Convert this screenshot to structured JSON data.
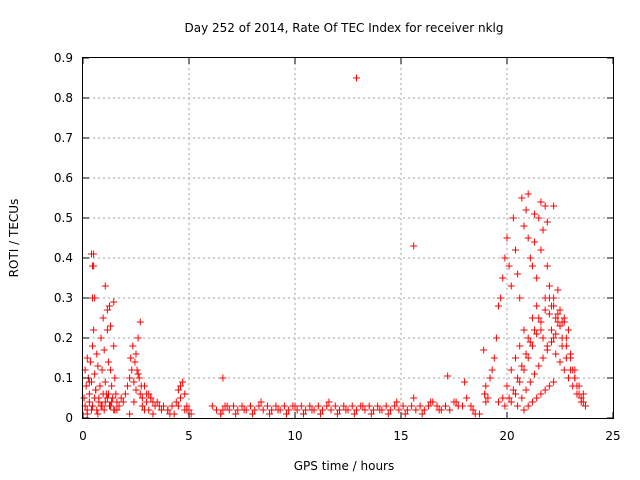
{
  "chart_data": {
    "type": "scatter",
    "title": "Day 252 of 2014, Rate Of TEC Index for receiver nklg",
    "xlabel": "GPS time / hours",
    "ylabel": "ROTI / TECUs",
    "xlim": [
      0,
      25
    ],
    "ylim": [
      0,
      0.9
    ],
    "xticks": [
      0,
      5,
      10,
      15,
      20,
      25
    ],
    "yticks": [
      0,
      0.1,
      0.2,
      0.3,
      0.4,
      0.5,
      0.6,
      0.7,
      0.8,
      0.9
    ],
    "grid": true,
    "legend": "none",
    "marker": "+",
    "color": "#ff0000",
    "series": [
      {
        "x": [
          0.05,
          0.1,
          0.15,
          0.2,
          0.25,
          0.3,
          0.35,
          0.4,
          0.45,
          0.5,
          0.55,
          0.6,
          0.65,
          0.7,
          0.75,
          0.8,
          0.85,
          0.9,
          0.95,
          1.0,
          1.05,
          1.1,
          1.15,
          1.2,
          1.25,
          1.3,
          1.35,
          1.4,
          1.45,
          1.5,
          1.55,
          1.6,
          1.7,
          1.8,
          1.9,
          2.0,
          2.1,
          2.2,
          2.3,
          2.4,
          2.5,
          2.6,
          2.7,
          2.8,
          2.9,
          3.0,
          3.1,
          3.2,
          3.3,
          3.4,
          3.5,
          3.6,
          3.8,
          4.0,
          4.2,
          4.4,
          4.6,
          4.8,
          4.9,
          5.0,
          5.1,
          0.1,
          0.2,
          0.3,
          0.45,
          0.55,
          0.65,
          0.75,
          0.85,
          0.95,
          1.05,
          1.15,
          1.25,
          1.35,
          1.45,
          2.25,
          2.35,
          2.45,
          2.55,
          2.65,
          2.75,
          3.0,
          3.2,
          4.5,
          4.6,
          4.7,
          0.45,
          0.5,
          0.55,
          1.05,
          1.15,
          1.3,
          1.45,
          2.5,
          2.6,
          2.7,
          0.3,
          0.6,
          0.9,
          1.2,
          1.5,
          2.4,
          2.8,
          3.1,
          4.0,
          4.3,
          4.8,
          0.2,
          0.4,
          0.7,
          1.0,
          1.3,
          1.6,
          2.2,
          2.9,
          3.3,
          3.7,
          4.1,
          4.5,
          4.9,
          6.1,
          6.3,
          6.5,
          6.6,
          6.7,
          6.9,
          7.1,
          7.3,
          7.5,
          7.7,
          7.9,
          8.1,
          8.3,
          8.5,
          8.7,
          8.9,
          9.1,
          9.3,
          9.5,
          9.7,
          9.9,
          10.1,
          10.3,
          10.5,
          10.7,
          10.9,
          11.1,
          11.3,
          11.5,
          11.7,
          11.9,
          12.1,
          12.3,
          12.5,
          12.7,
          12.9,
          13.1,
          13.3,
          13.5,
          13.7,
          13.9,
          14.1,
          14.3,
          14.5,
          14.7,
          14.9,
          15.1,
          15.3,
          15.5,
          15.7,
          15.9,
          16.1,
          16.3,
          16.5,
          16.7,
          16.9,
          17.1,
          17.3,
          17.5,
          17.7,
          17.9,
          18.1,
          18.3,
          18.5,
          18.7,
          6.5,
          7.2,
          8.0,
          8.8,
          9.6,
          10.4,
          11.2,
          12.0,
          12.8,
          13.6,
          14.4,
          15.2,
          16.0,
          16.8,
          17.6,
          18.4,
          6.8,
          7.6,
          8.4,
          9.2,
          10.0,
          10.8,
          11.6,
          12.4,
          13.2,
          14.0,
          14.8,
          15.6,
          16.4,
          17.2,
          18.0,
          6.6,
          12.9,
          15.6,
          18.9,
          18.95,
          19.0,
          19.1,
          19.2,
          19.3,
          19.4,
          19.5,
          19.6,
          19.7,
          19.8,
          19.9,
          20.0,
          20.1,
          20.2,
          20.3,
          20.4,
          20.5,
          20.6,
          20.7,
          20.8,
          20.9,
          21.0,
          21.1,
          21.2,
          21.3,
          21.4,
          21.5,
          21.6,
          21.7,
          21.8,
          21.9,
          22.0,
          22.1,
          22.2,
          22.3,
          22.4,
          22.5,
          22.6,
          22.7,
          22.8,
          22.9,
          23.0,
          23.1,
          23.2,
          23.3,
          23.4,
          23.5,
          23.6,
          23.7,
          19.6,
          19.8,
          20.0,
          20.2,
          20.4,
          20.6,
          20.8,
          21.0,
          21.2,
          21.4,
          21.6,
          21.8,
          22.0,
          22.2,
          22.4,
          22.6,
          22.8,
          23.0,
          23.2,
          23.4,
          23.6,
          19.9,
          20.1,
          20.3,
          20.5,
          20.7,
          20.9,
          21.1,
          21.3,
          21.5,
          21.7,
          21.9,
          22.1,
          22.3,
          22.5,
          22.7,
          22.9,
          23.1,
          23.3,
          23.5,
          20.2,
          20.4,
          20.6,
          20.8,
          21.0,
          21.2,
          21.4,
          21.6,
          21.8,
          22.0,
          22.2,
          22.4,
          22.6,
          22.8,
          23.0,
          23.2,
          20.5,
          20.7,
          20.9,
          21.1,
          21.3,
          21.5,
          21.7,
          21.9,
          22.1,
          22.3,
          22.5,
          22.7,
          20.8,
          21.0,
          21.2,
          21.4,
          21.6,
          21.8,
          22.0,
          22.2,
          21.0,
          21.3,
          21.6,
          21.9,
          22.2,
          18.95,
          19.0,
          0.4,
          0.5,
          0.45
        ],
        "y": [
          0.05,
          0.12,
          0.08,
          0.15,
          0.1,
          0.06,
          0.14,
          0.09,
          0.18,
          0.22,
          0.11,
          0.07,
          0.16,
          0.13,
          0.05,
          0.08,
          0.2,
          0.12,
          0.25,
          0.17,
          0.09,
          0.06,
          0.22,
          0.14,
          0.28,
          0.12,
          0.08,
          0.05,
          0.18,
          0.1,
          0.06,
          0.04,
          0.03,
          0.05,
          0.04,
          0.06,
          0.08,
          0.1,
          0.12,
          0.09,
          0.07,
          0.11,
          0.06,
          0.05,
          0.08,
          0.04,
          0.06,
          0.05,
          0.04,
          0.03,
          0.04,
          0.03,
          0.03,
          0.02,
          0.03,
          0.04,
          0.05,
          0.06,
          0.03,
          0.02,
          0.01,
          0.03,
          0.02,
          0.04,
          0.03,
          0.05,
          0.02,
          0.04,
          0.03,
          0.06,
          0.04,
          0.05,
          0.03,
          0.04,
          0.02,
          0.15,
          0.18,
          0.14,
          0.12,
          0.1,
          0.08,
          0.06,
          0.05,
          0.07,
          0.08,
          0.09,
          0.38,
          0.41,
          0.3,
          0.33,
          0.27,
          0.23,
          0.29,
          0.16,
          0.2,
          0.24,
          0.09,
          0.07,
          0.03,
          0.06,
          0.02,
          0.04,
          0.03,
          0.02,
          0.02,
          0.01,
          0.02,
          0.01,
          0.02,
          0.01,
          0.02,
          0.03,
          0.02,
          0.01,
          0.02,
          0.01,
          0.02,
          0.01,
          0.03,
          0.02,
          0.03,
          0.02,
          0.01,
          0.02,
          0.03,
          0.02,
          0.03,
          0.02,
          0.03,
          0.02,
          0.03,
          0.02,
          0.03,
          0.02,
          0.03,
          0.02,
          0.03,
          0.02,
          0.03,
          0.02,
          0.03,
          0.02,
          0.03,
          0.02,
          0.03,
          0.02,
          0.03,
          0.02,
          0.03,
          0.02,
          0.03,
          0.02,
          0.03,
          0.02,
          0.03,
          0.02,
          0.03,
          0.02,
          0.03,
          0.02,
          0.03,
          0.02,
          0.03,
          0.02,
          0.03,
          0.02,
          0.03,
          0.02,
          0.03,
          0.02,
          0.03,
          0.02,
          0.03,
          0.04,
          0.03,
          0.02,
          0.03,
          0.02,
          0.04,
          0.03,
          0.03,
          0.05,
          0.03,
          0.01,
          0.01,
          0.01,
          0.01,
          0.01,
          0.01,
          0.01,
          0.01,
          0.01,
          0.01,
          0.01,
          0.01,
          0.01,
          0.01,
          0.01,
          0.02,
          0.04,
          0.02,
          0.03,
          0.02,
          0.04,
          0.02,
          0.03,
          0.02,
          0.04,
          0.02,
          0.03,
          0.02,
          0.04,
          0.05,
          0.04,
          0.105,
          0.09,
          0.1,
          0.85,
          0.43,
          0.17,
          0.06,
          0.08,
          0.05,
          0.1,
          0.12,
          0.15,
          0.2,
          0.28,
          0.3,
          0.35,
          0.4,
          0.45,
          0.38,
          0.33,
          0.5,
          0.42,
          0.36,
          0.3,
          0.55,
          0.48,
          0.52,
          0.45,
          0.4,
          0.38,
          0.44,
          0.35,
          0.5,
          0.42,
          0.47,
          0.53,
          0.38,
          0.33,
          0.28,
          0.3,
          0.25,
          0.32,
          0.27,
          0.2,
          0.24,
          0.18,
          0.22,
          0.15,
          0.12,
          0.1,
          0.08,
          0.06,
          0.05,
          0.04,
          0.03,
          0.04,
          0.05,
          0.08,
          0.12,
          0.15,
          0.18,
          0.22,
          0.2,
          0.25,
          0.28,
          0.22,
          0.3,
          0.26,
          0.2,
          0.24,
          0.18,
          0.15,
          0.12,
          0.1,
          0.08,
          0.06,
          0.03,
          0.05,
          0.07,
          0.1,
          0.13,
          0.16,
          0.19,
          0.22,
          0.25,
          0.2,
          0.18,
          0.22,
          0.16,
          0.14,
          0.12,
          0.1,
          0.08,
          0.06,
          0.04,
          0.04,
          0.06,
          0.09,
          0.12,
          0.15,
          0.18,
          0.21,
          0.24,
          0.27,
          0.3,
          0.28,
          0.26,
          0.24,
          0.2,
          0.16,
          0.12,
          0.03,
          0.05,
          0.07,
          0.09,
          0.11,
          0.13,
          0.15,
          0.17,
          0.19,
          0.21,
          0.23,
          0.25,
          0.02,
          0.03,
          0.04,
          0.05,
          0.06,
          0.07,
          0.08,
          0.09,
          0.56,
          0.51,
          0.54,
          0.49,
          0.53,
          0.06,
          0.04,
          0.41,
          0.38,
          0.3
        ]
      }
    ]
  }
}
